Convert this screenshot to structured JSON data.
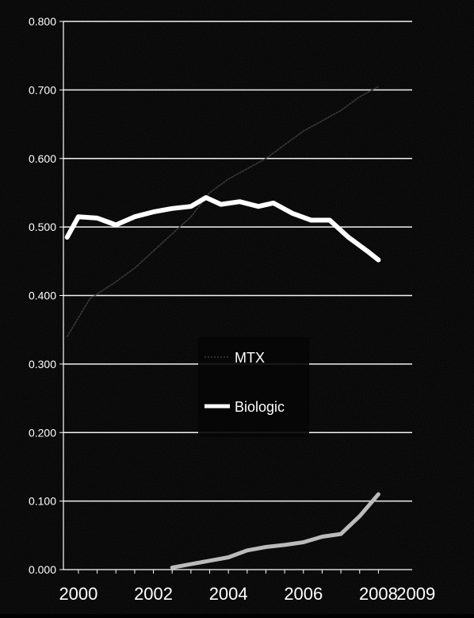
{
  "chart_data": {
    "type": "line",
    "title": "",
    "xlabel": "",
    "ylabel": "",
    "y_ticks": [
      "0.000",
      "0.100",
      "0.200",
      "0.300",
      "0.400",
      "0.500",
      "0.600",
      "0.700",
      "0.800"
    ],
    "ylim": [
      0,
      0.8
    ],
    "x_ticks": [
      "2000",
      "2002",
      "2004",
      "2006",
      "2008",
      "2009"
    ],
    "x_tick_values": [
      2000,
      2002,
      2004,
      2006,
      2008,
      2009
    ],
    "xlim": [
      1999.6,
      2008.9
    ],
    "grid": "horizontal",
    "legend_placement": "center",
    "series": [
      {
        "name": "MTX",
        "color": "#3a3a3a",
        "style": "thin-dotted",
        "x": [
          1999.7,
          2000.3,
          2001.0,
          2001.5,
          2002.0,
          2002.5,
          2003.0,
          2003.5,
          2004.0,
          2004.5,
          2005.0,
          2005.5,
          2006.0,
          2006.5,
          2007.0,
          2007.5,
          2008.0
        ],
        "values": [
          0.34,
          0.395,
          0.42,
          0.44,
          0.465,
          0.49,
          0.515,
          0.55,
          0.57,
          0.585,
          0.6,
          0.62,
          0.64,
          0.655,
          0.67,
          0.69,
          0.705
        ]
      },
      {
        "name": "Biologic",
        "color": "#ffffff",
        "style": "thick",
        "x": [
          1999.7,
          2000.0,
          2000.5,
          2001.0,
          2001.5,
          2002.0,
          2002.5,
          2003.0,
          2003.4,
          2003.8,
          2004.3,
          2004.8,
          2005.2,
          2005.7,
          2006.2,
          2006.7,
          2007.2,
          2007.7,
          2008.0
        ],
        "values": [
          0.485,
          0.515,
          0.513,
          0.503,
          0.515,
          0.522,
          0.527,
          0.53,
          0.543,
          0.533,
          0.537,
          0.53,
          0.535,
          0.52,
          0.51,
          0.51,
          0.485,
          0.465,
          0.452
        ]
      },
      {
        "name": "",
        "color": "#bbbbbb",
        "style": "thick-light",
        "x": [
          2002.5,
          2003.0,
          2003.5,
          2004.0,
          2004.5,
          2005.0,
          2005.5,
          2006.0,
          2006.5,
          2007.0,
          2007.5,
          2008.0
        ],
        "values": [
          0.003,
          0.008,
          0.013,
          0.018,
          0.028,
          0.033,
          0.036,
          0.04,
          0.048,
          0.052,
          0.078,
          0.11
        ]
      }
    ]
  }
}
